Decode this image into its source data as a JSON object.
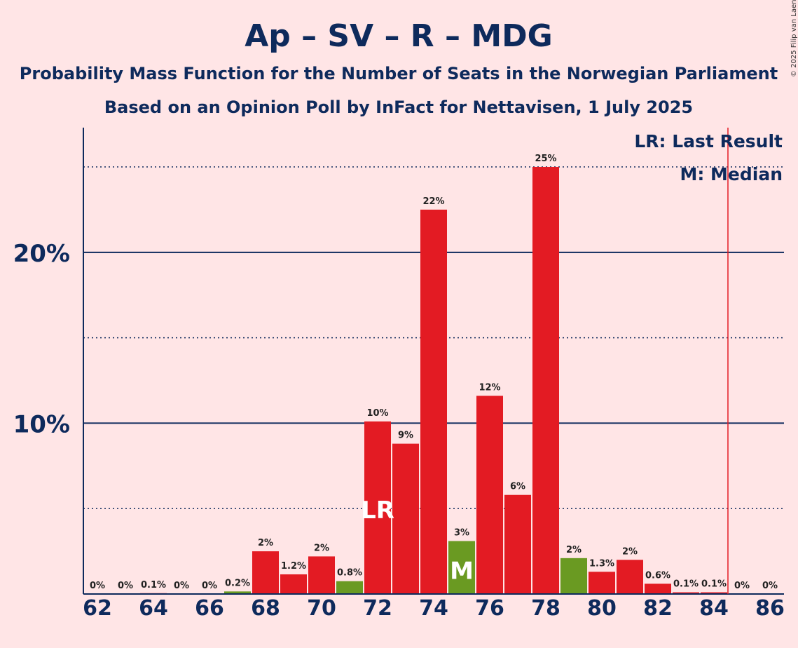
{
  "chart_data": {
    "type": "bar",
    "title": "Ap – SV – R – MDG",
    "subtitle": "Probability Mass Function for the Number of Seats in the Norwegian Parliament",
    "subtitle2": "Based on an Opinion Poll by InFact for Nettavisen, 1 July 2025",
    "copyright": "© 2025 Filip van Laenen",
    "x": [
      62,
      63,
      64,
      65,
      66,
      67,
      68,
      69,
      70,
      71,
      72,
      73,
      74,
      75,
      76,
      77,
      78,
      79,
      80,
      81,
      82,
      83,
      84,
      85,
      86
    ],
    "values": [
      0,
      0,
      0.05,
      0,
      0,
      0.15,
      2.5,
      1.15,
      2.2,
      0.75,
      10.1,
      8.8,
      22.5,
      3.1,
      11.6,
      5.8,
      25.0,
      2.1,
      1.3,
      2.0,
      0.6,
      0.1,
      0.1,
      0,
      0
    ],
    "labels": [
      "0%",
      "0%",
      "0.1%",
      "0%",
      "0%",
      "0.2%",
      "2%",
      "1.2%",
      "2%",
      "0.8%",
      "10%",
      "9%",
      "22%",
      "3%",
      "12%",
      "6%",
      "25%",
      "2%",
      "1.3%",
      "2%",
      "0.6%",
      "0.1%",
      "0.1%",
      "0%",
      "0%"
    ],
    "bar_colors": [
      "#e31b23",
      "#e31b23",
      "#e31b23",
      "#e31b23",
      "#e31b23",
      "#6a9a22",
      "#e31b23",
      "#e31b23",
      "#e31b23",
      "#6a9a22",
      "#e31b23",
      "#e31b23",
      "#e31b23",
      "#6a9a22",
      "#e31b23",
      "#e31b23",
      "#e31b23",
      "#6a9a22",
      "#e31b23",
      "#e31b23",
      "#e31b23",
      "#e31b23",
      "#e31b23",
      "#e31b23",
      "#e31b23"
    ],
    "xticks": [
      62,
      64,
      66,
      68,
      70,
      72,
      74,
      76,
      78,
      80,
      82,
      84,
      86
    ],
    "yticks": [
      {
        "value": 10,
        "label": "10%"
      },
      {
        "value": 20,
        "label": "20%"
      }
    ],
    "dotted_gridlines": [
      5,
      15,
      25
    ],
    "ylim": [
      0,
      27.3
    ],
    "last_result_seat": 72,
    "last_result_marker": "LR",
    "median_seat": 75,
    "median_marker": "M",
    "majority_line_seat": 84.5,
    "legend": [
      "LR: Last Result",
      "M: Median"
    ],
    "colors": {
      "background": "#ffe5e6",
      "text": "#0e2a5c",
      "red": "#e31b23",
      "green": "#6a9a22",
      "majority_line": "#e31b23"
    }
  }
}
